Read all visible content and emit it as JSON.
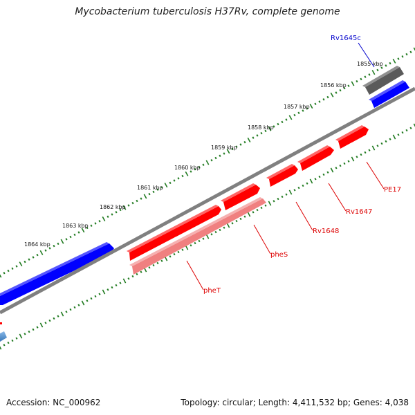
{
  "map": {
    "title": "Mycobacterium tuberculosis H37Rv, complete genome",
    "accession": "Accession: NC_000962",
    "summary": "Topology: circular; Length: 4,411,532 bp; Genes: 4,038",
    "tick_labels": [
      "1855 kbp",
      "1856 kbp",
      "1857 kbp",
      "1858 kbp",
      "1859 kbp",
      "1860 kbp",
      "1861 kbp",
      "1862 kbp",
      "1863 kbp",
      "1864 kbp"
    ],
    "genes": [
      {
        "label": "Rv1645c",
        "color": "#0000cc"
      },
      {
        "label": "PE17",
        "color": "#dd0000"
      },
      {
        "label": "Rv1647",
        "color": "#dd0000"
      },
      {
        "label": "Rv1648",
        "color": "#dd0000"
      },
      {
        "label": "pheS",
        "color": "#dd0000"
      },
      {
        "label": "pheT",
        "color": "#dd0000"
      }
    ],
    "colors": {
      "forward_cds": "#ff0000",
      "reverse_cds": "#0000ff",
      "rna_gene": "#606060",
      "highlight_gene": "#f08080",
      "backbone": "#888888",
      "ruler": "#1f7a1f",
      "label_blue": "#0000cc",
      "label_red": "#dd0000"
    }
  }
}
